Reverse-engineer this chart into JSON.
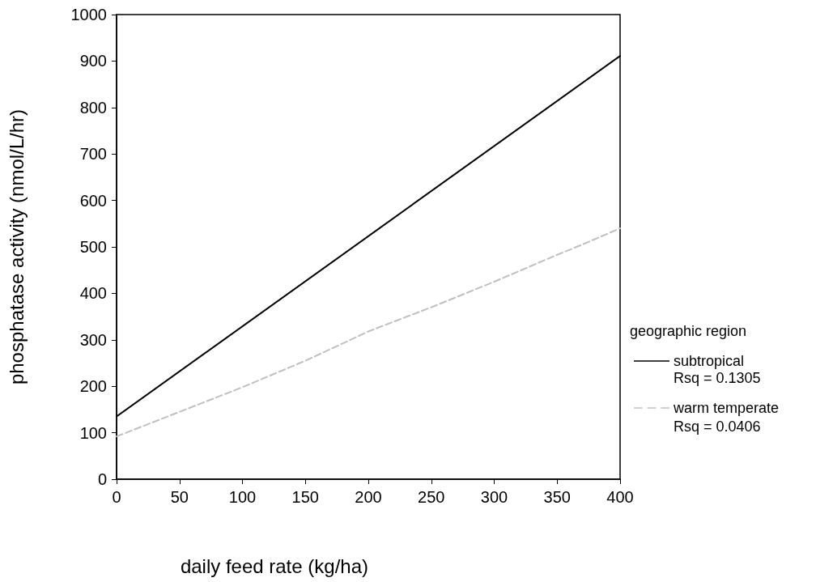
{
  "chart_data": {
    "type": "line",
    "xlabel": "daily feed rate (kg/ha)",
    "ylabel": "phosphatase activity (nmol/L/hr)",
    "legend_title": "geographic region",
    "xlim": [
      0,
      400
    ],
    "xticks": [
      0,
      50,
      100,
      150,
      200,
      250,
      300,
      350,
      400
    ],
    "ylim": [
      0,
      1000
    ],
    "yticks": [
      0,
      100,
      200,
      300,
      400,
      500,
      600,
      700,
      800,
      900,
      1000
    ],
    "grid": false,
    "legend": "right",
    "marker": "none",
    "series": [
      {
        "name": "subtropical",
        "color": "#000000",
        "line_style": "solid",
        "x": [
          0,
          400
        ],
        "values": [
          135,
          911
        ]
      },
      {
        "name": "warm temperate",
        "color": "#c0c0c0",
        "line_style": "dashed",
        "x": [
          0,
          50,
          100,
          150,
          170,
          200,
          250,
          300,
          350,
          370,
          400
        ],
        "values": [
          92,
          145,
          198,
          255,
          280,
          318,
          370,
          425,
          483,
          505,
          540
        ]
      }
    ],
    "annotations": [
      "Rsq = 0.1305",
      "Rsq = 0.0406"
    ]
  }
}
